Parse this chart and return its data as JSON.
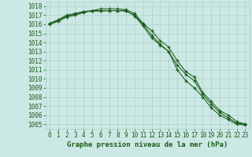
{
  "title": "Graphe pression niveau de la mer (hPa)",
  "x_values": [
    0,
    1,
    2,
    3,
    4,
    5,
    6,
    7,
    8,
    9,
    10,
    11,
    12,
    13,
    14,
    15,
    16,
    17,
    18,
    19,
    20,
    21,
    22,
    23
  ],
  "line1": [
    1016.1,
    1016.5,
    1017.0,
    1017.2,
    1017.4,
    1017.5,
    1017.5,
    1017.5,
    1017.5,
    1017.5,
    1016.9,
    1015.8,
    1014.5,
    1013.7,
    1013.0,
    1011.5,
    1010.5,
    1009.8,
    1008.3,
    1007.2,
    1006.3,
    1005.7,
    1005.1,
    1005.0
  ],
  "line2": [
    1016.1,
    1016.4,
    1016.9,
    1017.1,
    1017.35,
    1017.45,
    1017.45,
    1017.5,
    1017.5,
    1017.45,
    1017.0,
    1016.0,
    1014.8,
    1013.8,
    1013.0,
    1011.0,
    1009.8,
    1009.0,
    1008.0,
    1006.8,
    1006.0,
    1005.5,
    1005.0,
    1004.9
  ],
  "line3": [
    1016.0,
    1016.3,
    1016.8,
    1017.0,
    1017.3,
    1017.5,
    1017.7,
    1017.7,
    1017.7,
    1017.6,
    1017.2,
    1016.1,
    1015.3,
    1014.2,
    1013.5,
    1012.0,
    1010.8,
    1010.2,
    1008.5,
    1007.5,
    1006.5,
    1006.0,
    1005.3,
    1005.0
  ],
  "bg_color": "#cce8e4",
  "grid_color": "#aad0cc",
  "line_color": "#1a5c1a",
  "marker": "+",
  "ylim": [
    1004.5,
    1018.5
  ],
  "xlim": [
    -0.5,
    23.5
  ],
  "ytick_labels": [
    "1005",
    "1006",
    "1007",
    "1008",
    "1009",
    "1010",
    "1011",
    "1012",
    "1013",
    "1014",
    "1015",
    "1016",
    "1017",
    "1018"
  ],
  "ytick_vals": [
    1005,
    1006,
    1007,
    1008,
    1009,
    1010,
    1011,
    1012,
    1013,
    1014,
    1015,
    1016,
    1017,
    1018
  ],
  "xtick_vals": [
    0,
    1,
    2,
    3,
    4,
    5,
    6,
    7,
    8,
    9,
    10,
    11,
    12,
    13,
    14,
    15,
    16,
    17,
    18,
    19,
    20,
    21,
    22,
    23
  ],
  "xlabel_fontsize": 6.5,
  "tick_fontsize": 5.5,
  "line_width": 0.75,
  "marker_size": 3.5,
  "marker_edge_width": 0.9
}
